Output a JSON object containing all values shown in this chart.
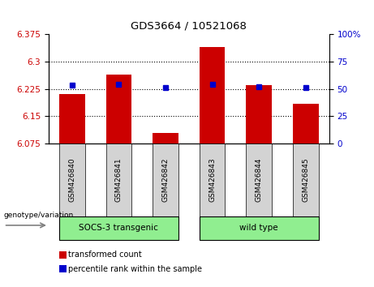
{
  "title": "GDS3664 / 10521068",
  "samples": [
    "GSM426840",
    "GSM426841",
    "GSM426842",
    "GSM426843",
    "GSM426844",
    "GSM426845"
  ],
  "bar_values": [
    6.21,
    6.265,
    6.105,
    6.34,
    6.235,
    6.185
  ],
  "percentile_values": [
    6.235,
    6.238,
    6.228,
    6.238,
    6.232,
    6.228
  ],
  "bar_color": "#cc0000",
  "percentile_color": "#0000cc",
  "ylim_left": [
    6.075,
    6.375
  ],
  "ylim_right": [
    0,
    100
  ],
  "yticks_left": [
    6.075,
    6.15,
    6.225,
    6.3,
    6.375
  ],
  "yticks_right": [
    0,
    25,
    50,
    75,
    100
  ],
  "ytick_labels_right": [
    "0",
    "25",
    "50",
    "75",
    "100%"
  ],
  "grid_values": [
    6.15,
    6.225,
    6.3
  ],
  "groups": [
    {
      "label": "SOCS-3 transgenic",
      "indices": [
        0,
        1,
        2
      ],
      "color": "#90ee90"
    },
    {
      "label": "wild type",
      "indices": [
        3,
        4,
        5
      ],
      "color": "#90ee90"
    }
  ],
  "genotype_label": "genotype/variation",
  "legend_items": [
    {
      "label": "transformed count",
      "color": "#cc0000"
    },
    {
      "label": "percentile rank within the sample",
      "color": "#0000cc"
    }
  ],
  "bar_width": 0.55,
  "background_color": "#ffffff",
  "plot_bg_color": "#ffffff",
  "tick_label_color_left": "#cc0000",
  "tick_label_color_right": "#0000cc",
  "sample_box_color": "#d3d3d3",
  "arrow_color": "#808080"
}
